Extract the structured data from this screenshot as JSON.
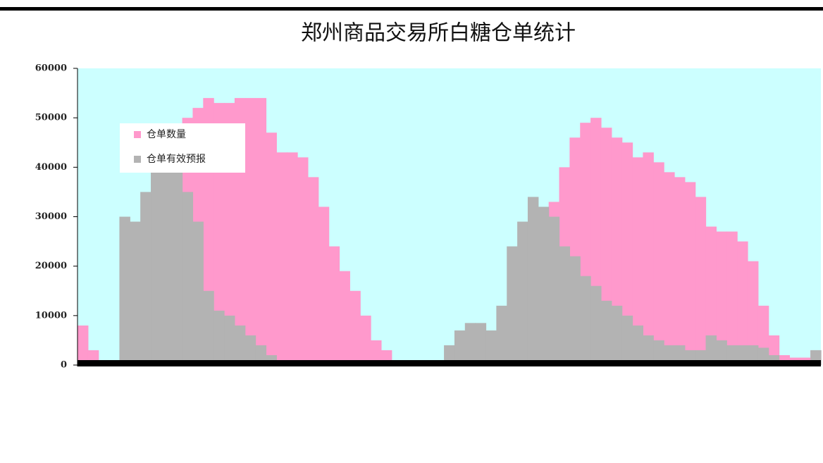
{
  "chart_data": {
    "type": "bar",
    "title": "郑州商品交易所白糖仓单统计",
    "categories": [
      null,
      null,
      null,
      null,
      null,
      null,
      null,
      null,
      null,
      null,
      null,
      null,
      null,
      null,
      null,
      null,
      null,
      null,
      null,
      null,
      null,
      null,
      null,
      null,
      null,
      null,
      null,
      null,
      null,
      null,
      null,
      null,
      null,
      null,
      null,
      null,
      null,
      null,
      null,
      null,
      null,
      null,
      null,
      null,
      null,
      null,
      null,
      null,
      null,
      null,
      null,
      null,
      null,
      null,
      null,
      null,
      null,
      null,
      null,
      null,
      null,
      null,
      null,
      null,
      null,
      null,
      null,
      null,
      null,
      null,
      null
    ],
    "series": [
      {
        "name": "仓单数量",
        "color": "#ff99cc",
        "values": [
          8000,
          3000,
          0,
          0,
          0,
          0,
          0,
          0,
          0,
          45000,
          50000,
          52000,
          54000,
          53000,
          53000,
          54000,
          54000,
          54000,
          47000,
          43000,
          43000,
          42000,
          38000,
          32000,
          24000,
          19000,
          15000,
          10000,
          5000,
          3000,
          1000,
          0,
          0,
          0,
          0,
          0,
          0,
          0,
          0,
          0,
          0,
          0,
          0,
          0,
          0,
          33000,
          40000,
          46000,
          49000,
          50000,
          48000,
          46000,
          45000,
          42000,
          43000,
          41000,
          39000,
          38000,
          37000,
          34000,
          28000,
          27000,
          27000,
          25000,
          21000,
          12000,
          6000,
          2000,
          1500,
          1500,
          3000
        ]
      },
      {
        "name": "仓单有效预报",
        "color": "#b3b3b3",
        "values": [
          0,
          0,
          0,
          0,
          30000,
          29000,
          35000,
          40000,
          42000,
          40000,
          35000,
          29000,
          15000,
          11000,
          10000,
          8000,
          6000,
          4000,
          2000,
          1000,
          500,
          500,
          400,
          400,
          300,
          300,
          200,
          200,
          100,
          100,
          0,
          0,
          0,
          0,
          500,
          4000,
          7000,
          8500,
          8500,
          7000,
          12000,
          24000,
          29000,
          34000,
          32000,
          30000,
          24000,
          22000,
          18000,
          16000,
          13000,
          12000,
          10000,
          8000,
          6000,
          5000,
          4000,
          4000,
          3000,
          3000,
          6000,
          5000,
          4000,
          4000,
          4000,
          3500,
          2000,
          1000,
          500,
          1000,
          3000
        ]
      }
    ],
    "ylim": [
      0,
      60000
    ],
    "yticks": [
      0,
      10000,
      20000,
      30000,
      40000,
      50000,
      60000
    ]
  }
}
